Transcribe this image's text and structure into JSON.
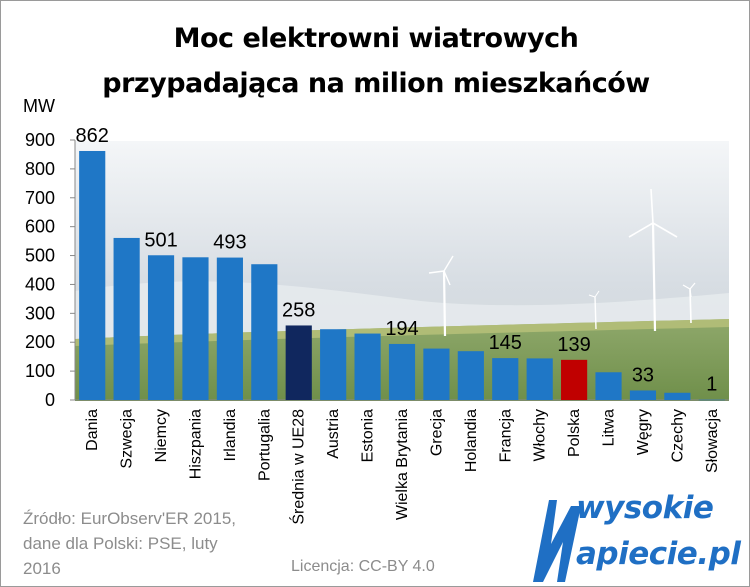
{
  "title_line1": "Moc elektrowni wiatrowych",
  "title_line2": "przypadająca na milion mieszkańców",
  "source_text": "Źródło: EurObserv'ER 2015,\ndane dla Polski: PSE, luty\n2016",
  "license_text": "Licencja: CC-BY 4.0",
  "logo": {
    "line1": "wysokie",
    "line2": "apiecie.pl",
    "initial": "N"
  },
  "colors": {
    "bar": "#1f77c6",
    "eu_average": "#10275e",
    "poland": "#c00000",
    "logo": "#1f6fc4"
  },
  "chart_data": {
    "type": "bar",
    "ylabel": "MW",
    "ylim": [
      0,
      900
    ],
    "yticks": [
      0,
      100,
      200,
      300,
      400,
      500,
      600,
      700,
      800,
      900
    ],
    "categories": [
      "Dania",
      "Szwecja",
      "Niemcy",
      "Hiszpania",
      "Irlandia",
      "Portugalia",
      "Średnia w UE28",
      "Austria",
      "Estonia",
      "Wielka Brytania",
      "Grecja",
      "Holandia",
      "Francja",
      "Włochy",
      "Polska",
      "Litwa",
      "Węgry",
      "Czechy",
      "Słowacja"
    ],
    "values": [
      862,
      561,
      501,
      494,
      493,
      470,
      258,
      245,
      230,
      194,
      178,
      169,
      145,
      144,
      139,
      96,
      33,
      25,
      1
    ],
    "data_labels": [
      {
        "index": 0,
        "text": "862"
      },
      {
        "index": 2,
        "text": "501"
      },
      {
        "index": 4,
        "text": "493"
      },
      {
        "index": 6,
        "text": "258"
      },
      {
        "index": 9,
        "text": "194"
      },
      {
        "index": 12,
        "text": "145"
      },
      {
        "index": 14,
        "text": "139"
      },
      {
        "index": 16,
        "text": "33"
      },
      {
        "index": 18,
        "text": "1"
      }
    ],
    "highlight": {
      "eu_average": 6,
      "poland": 14
    },
    "grid": false,
    "background": "photo of wind turbines in a field"
  }
}
